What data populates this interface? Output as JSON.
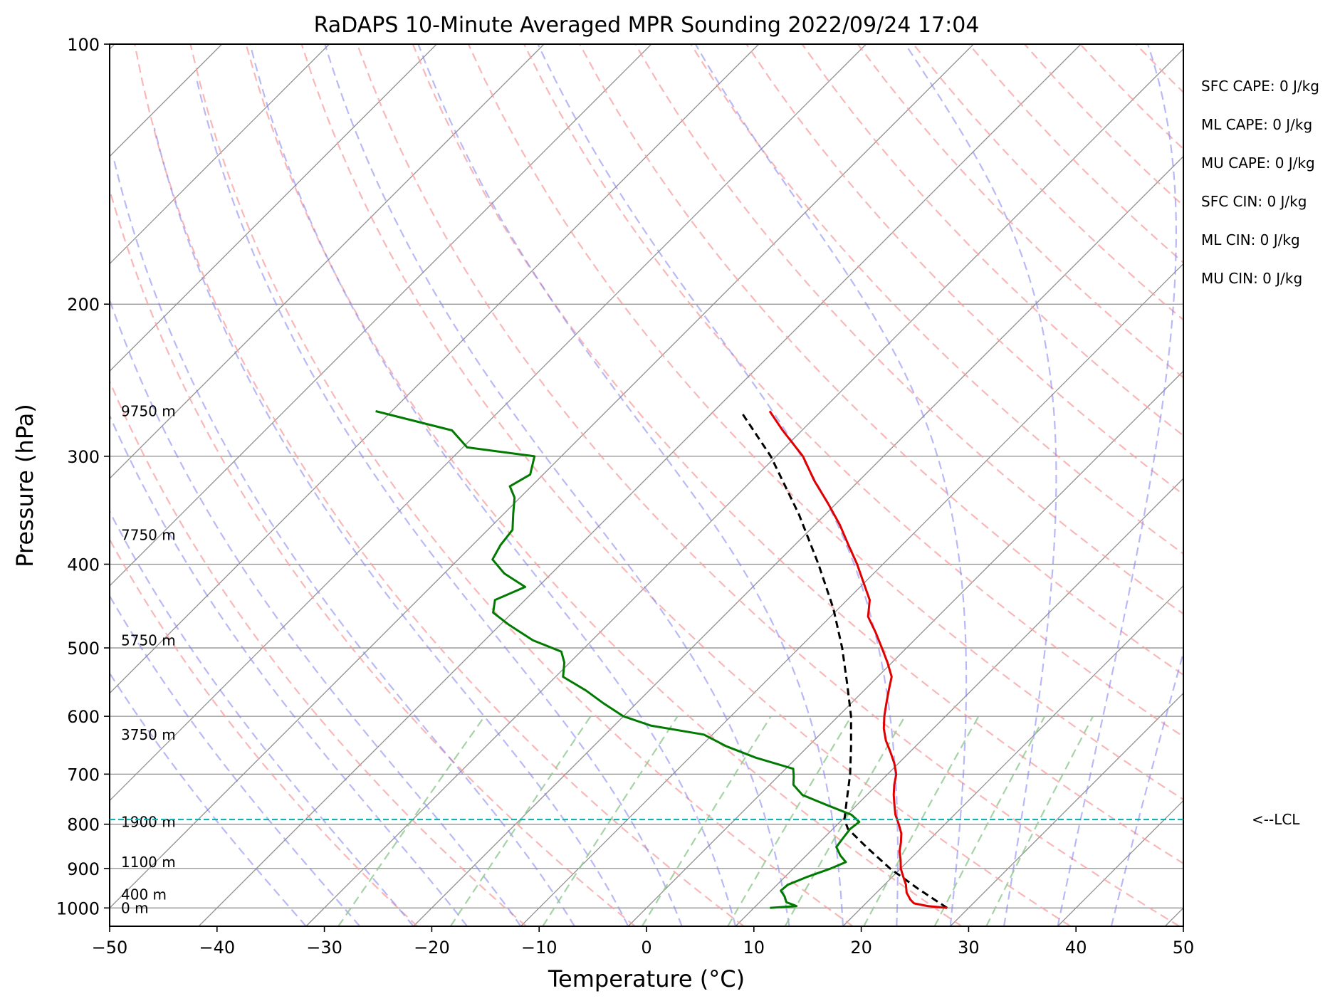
{
  "chart_data": {
    "type": "skew-t",
    "title": "RaDAPS 10-Minute Averaged MPR Sounding 2022/09/24 17:04",
    "xlabel": "Temperature (°C)",
    "ylabel": "Pressure (hPa)",
    "xlim": [
      -50,
      50
    ],
    "ylim": [
      1050,
      100
    ],
    "y_scale": "log",
    "xticks": [
      "−50",
      "−40",
      "−30",
      "−20",
      "−10",
      "0",
      "10",
      "20",
      "30",
      "40",
      "50"
    ],
    "yticks": [
      "100",
      "200",
      "300",
      "400",
      "500",
      "600",
      "700",
      "800",
      "900",
      "1000"
    ],
    "grid": true,
    "temperature": {
      "color": "#e00000",
      "points": [
        {
          "p": 1000,
          "t": 28.0
        },
        {
          "p": 995,
          "t": 26.0
        },
        {
          "p": 988,
          "t": 24.5
        },
        {
          "p": 978,
          "t": 23.8
        },
        {
          "p": 960,
          "t": 22.8
        },
        {
          "p": 940,
          "t": 22.0
        },
        {
          "p": 920,
          "t": 21.0
        },
        {
          "p": 900,
          "t": 20.0
        },
        {
          "p": 880,
          "t": 19.2
        },
        {
          "p": 860,
          "t": 18.3
        },
        {
          "p": 840,
          "t": 17.6
        },
        {
          "p": 820,
          "t": 16.8
        },
        {
          "p": 800,
          "t": 15.7
        },
        {
          "p": 780,
          "t": 14.5
        },
        {
          "p": 760,
          "t": 13.5
        },
        {
          "p": 740,
          "t": 12.5
        },
        {
          "p": 720,
          "t": 11.6
        },
        {
          "p": 700,
          "t": 10.8
        },
        {
          "p": 680,
          "t": 9.6
        },
        {
          "p": 660,
          "t": 8.2
        },
        {
          "p": 640,
          "t": 6.7
        },
        {
          "p": 620,
          "t": 5.4
        },
        {
          "p": 600,
          "t": 4.3
        },
        {
          "p": 580,
          "t": 3.3
        },
        {
          "p": 560,
          "t": 2.3
        },
        {
          "p": 540,
          "t": 1.3
        },
        {
          "p": 520,
          "t": -0.4
        },
        {
          "p": 500,
          "t": -2.3
        },
        {
          "p": 480,
          "t": -4.3
        },
        {
          "p": 460,
          "t": -6.5
        },
        {
          "p": 440,
          "t": -7.9
        },
        {
          "p": 420,
          "t": -10.1
        },
        {
          "p": 400,
          "t": -12.4
        },
        {
          "p": 380,
          "t": -15.0
        },
        {
          "p": 360,
          "t": -17.7
        },
        {
          "p": 340,
          "t": -20.8
        },
        {
          "p": 320,
          "t": -24.2
        },
        {
          "p": 300,
          "t": -27.5
        },
        {
          "p": 280,
          "t": -31.8
        },
        {
          "p": 266,
          "t": -34.8
        }
      ]
    },
    "dewpoint": {
      "color": "#007a00",
      "points": [
        {
          "p": 1000,
          "t": 11.5
        },
        {
          "p": 995,
          "t": 13.8
        },
        {
          "p": 985,
          "t": 12.5
        },
        {
          "p": 970,
          "t": 11.8
        },
        {
          "p": 955,
          "t": 10.9
        },
        {
          "p": 940,
          "t": 11.0
        },
        {
          "p": 920,
          "t": 12.1
        },
        {
          "p": 900,
          "t": 13.5
        },
        {
          "p": 885,
          "t": 14.3
        },
        {
          "p": 870,
          "t": 13.2
        },
        {
          "p": 850,
          "t": 12.0
        },
        {
          "p": 830,
          "t": 11.8
        },
        {
          "p": 810,
          "t": 11.6
        },
        {
          "p": 795,
          "t": 11.8
        },
        {
          "p": 780,
          "t": 10.4
        },
        {
          "p": 760,
          "t": 7.2
        },
        {
          "p": 740,
          "t": 4.0
        },
        {
          "p": 720,
          "t": 2.2
        },
        {
          "p": 705,
          "t": 1.5
        },
        {
          "p": 690,
          "t": 0.7
        },
        {
          "p": 670,
          "t": -3.8
        },
        {
          "p": 650,
          "t": -7.6
        },
        {
          "p": 630,
          "t": -10.8
        },
        {
          "p": 615,
          "t": -16.6
        },
        {
          "p": 600,
          "t": -20.0
        },
        {
          "p": 580,
          "t": -23.0
        },
        {
          "p": 560,
          "t": -25.9
        },
        {
          "p": 540,
          "t": -29.3
        },
        {
          "p": 520,
          "t": -30.5
        },
        {
          "p": 505,
          "t": -31.8
        },
        {
          "p": 490,
          "t": -35.5
        },
        {
          "p": 470,
          "t": -39.2
        },
        {
          "p": 455,
          "t": -41.8
        },
        {
          "p": 440,
          "t": -42.8
        },
        {
          "p": 425,
          "t": -41.2
        },
        {
          "p": 410,
          "t": -44.4
        },
        {
          "p": 395,
          "t": -46.8
        },
        {
          "p": 380,
          "t": -47.4
        },
        {
          "p": 365,
          "t": -47.7
        },
        {
          "p": 350,
          "t": -49.1
        },
        {
          "p": 335,
          "t": -50.5
        },
        {
          "p": 325,
          "t": -52.0
        },
        {
          "p": 315,
          "t": -51.2
        },
        {
          "p": 300,
          "t": -52.5
        },
        {
          "p": 293,
          "t": -59.6
        },
        {
          "p": 280,
          "t": -62.6
        },
        {
          "p": 266,
          "t": -71.5
        }
      ]
    },
    "parcel": {
      "color": "#000000",
      "style": "dashed",
      "points": [
        {
          "p": 1000,
          "t": 28.0
        },
        {
          "p": 950,
          "t": 23.5
        },
        {
          "p": 900,
          "t": 19.0
        },
        {
          "p": 850,
          "t": 14.8
        },
        {
          "p": 810,
          "t": 11.4
        },
        {
          "p": 790,
          "t": 10.2
        },
        {
          "p": 750,
          "t": 8.6
        },
        {
          "p": 700,
          "t": 6.5
        },
        {
          "p": 650,
          "t": 4.0
        },
        {
          "p": 600,
          "t": 1.2
        },
        {
          "p": 550,
          "t": -2.2
        },
        {
          "p": 500,
          "t": -6.0
        },
        {
          "p": 450,
          "t": -10.5
        },
        {
          "p": 400,
          "t": -16.0
        },
        {
          "p": 350,
          "t": -22.5
        },
        {
          "p": 300,
          "t": -30.5
        },
        {
          "p": 266,
          "t": -37.5
        }
      ]
    },
    "lcl": {
      "p": 790,
      "label": "<--LCL"
    },
    "height_labels": [
      {
        "p": 266,
        "text": "9750 m"
      },
      {
        "p": 370,
        "text": "7750 m"
      },
      {
        "p": 490,
        "text": "5750 m"
      },
      {
        "p": 630,
        "text": "3750 m"
      },
      {
        "p": 795,
        "text": "1900 m"
      },
      {
        "p": 885,
        "text": "1100 m"
      },
      {
        "p": 965,
        "text": "400 m"
      },
      {
        "p": 1000,
        "text": "0 m"
      }
    ],
    "indices": [
      "SFC CAPE: 0 J/kg",
      "ML CAPE: 0 J/kg",
      "MU CAPE: 0 J/kg",
      "SFC CIN: 0 J/kg",
      "ML CIN: 0 J/kg",
      "MU CIN: 0 J/kg"
    ],
    "colors": {
      "dry_adiabats": "#f5a0a0",
      "moist_adiabats": "#8080ee",
      "mixing_ratio": "#90c890",
      "isotherms": "#909090",
      "lcl_line": "#00b0b0"
    }
  }
}
